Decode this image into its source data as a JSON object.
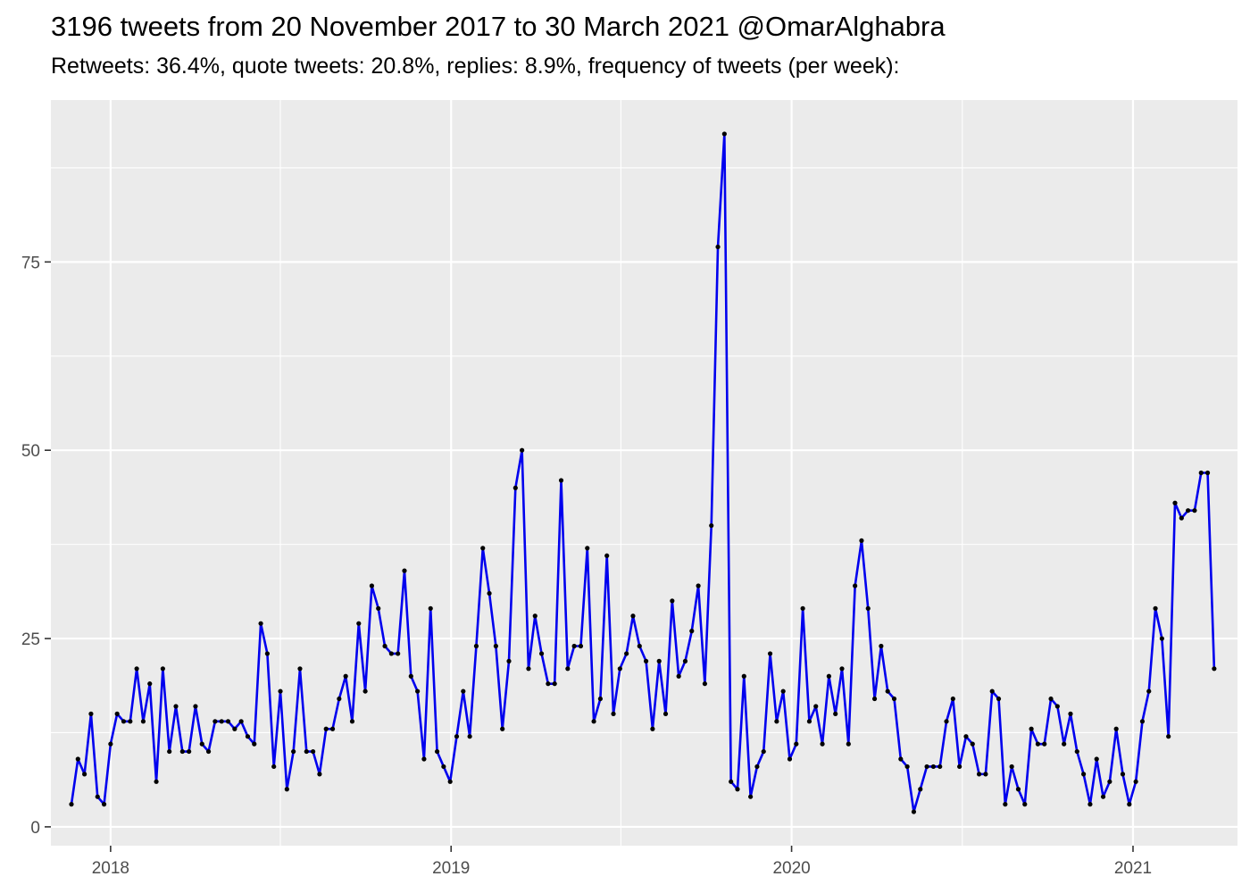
{
  "chart_data": {
    "type": "line",
    "title": "3196 tweets from 20 November 2017 to 30 March 2021 @OmarAlghabra",
    "subtitle": "Retweets: 36.4%, quote tweets: 20.8%, replies: 8.9%, frequency of tweets (per week):",
    "xlabel": "",
    "ylabel": "",
    "x_ticks": [
      "2018",
      "2019",
      "2020",
      "2021"
    ],
    "y_ticks": [
      "0",
      "25",
      "50",
      "75"
    ],
    "xlim": [
      "2017-10-29",
      "2021-04-23"
    ],
    "ylim": [
      -2.5,
      96.5
    ],
    "grid": true,
    "series_color": "#0000ee",
    "point_color": "#000000",
    "x": [
      "2017-11-20",
      "2017-11-27",
      "2017-12-04",
      "2017-12-11",
      "2017-12-18",
      "2017-12-25",
      "2018-01-01",
      "2018-01-08",
      "2018-01-15",
      "2018-01-22",
      "2018-01-29",
      "2018-02-05",
      "2018-02-12",
      "2018-02-19",
      "2018-02-26",
      "2018-03-05",
      "2018-03-12",
      "2018-03-19",
      "2018-03-26",
      "2018-04-02",
      "2018-04-09",
      "2018-04-16",
      "2018-04-23",
      "2018-04-30",
      "2018-05-07",
      "2018-05-14",
      "2018-05-21",
      "2018-05-28",
      "2018-06-04",
      "2018-06-11",
      "2018-06-18",
      "2018-06-25",
      "2018-07-02",
      "2018-07-09",
      "2018-07-16",
      "2018-07-23",
      "2018-07-30",
      "2018-08-06",
      "2018-08-13",
      "2018-08-20",
      "2018-08-27",
      "2018-09-03",
      "2018-09-10",
      "2018-09-17",
      "2018-09-24",
      "2018-10-01",
      "2018-10-08",
      "2018-10-15",
      "2018-10-22",
      "2018-10-29",
      "2018-11-05",
      "2018-11-12",
      "2018-11-19",
      "2018-11-26",
      "2018-12-03",
      "2018-12-10",
      "2018-12-17",
      "2018-12-24",
      "2018-12-31",
      "2019-01-07",
      "2019-01-14",
      "2019-01-21",
      "2019-01-28",
      "2019-02-04",
      "2019-02-11",
      "2019-02-18",
      "2019-02-25",
      "2019-03-04",
      "2019-03-11",
      "2019-03-18",
      "2019-03-25",
      "2019-04-01",
      "2019-04-08",
      "2019-04-15",
      "2019-04-22",
      "2019-04-29",
      "2019-05-06",
      "2019-05-13",
      "2019-05-20",
      "2019-05-27",
      "2019-06-03",
      "2019-06-10",
      "2019-06-17",
      "2019-06-24",
      "2019-07-01",
      "2019-07-08",
      "2019-07-15",
      "2019-07-22",
      "2019-07-29",
      "2019-08-05",
      "2019-08-12",
      "2019-08-19",
      "2019-08-26",
      "2019-09-02",
      "2019-09-09",
      "2019-09-16",
      "2019-09-23",
      "2019-09-30",
      "2019-10-07",
      "2019-10-14",
      "2019-10-21",
      "2019-10-28",
      "2019-11-04",
      "2019-11-11",
      "2019-11-18",
      "2019-11-25",
      "2019-12-02",
      "2019-12-09",
      "2019-12-16",
      "2019-12-23",
      "2019-12-30",
      "2020-01-06",
      "2020-01-13",
      "2020-01-20",
      "2020-01-27",
      "2020-02-03",
      "2020-02-10",
      "2020-02-17",
      "2020-02-24",
      "2020-03-02",
      "2020-03-09",
      "2020-03-16",
      "2020-03-23",
      "2020-03-30",
      "2020-04-06",
      "2020-04-13",
      "2020-04-20",
      "2020-04-27",
      "2020-05-04",
      "2020-05-11",
      "2020-05-18",
      "2020-05-25",
      "2020-06-01",
      "2020-06-08",
      "2020-06-15",
      "2020-06-22",
      "2020-06-29",
      "2020-07-06",
      "2020-07-13",
      "2020-07-20",
      "2020-07-27",
      "2020-08-03",
      "2020-08-10",
      "2020-08-17",
      "2020-08-24",
      "2020-08-31",
      "2020-09-07",
      "2020-09-14",
      "2020-09-21",
      "2020-09-28",
      "2020-10-05",
      "2020-10-12",
      "2020-10-19",
      "2020-10-26",
      "2020-11-02",
      "2020-11-09",
      "2020-11-16",
      "2020-11-23",
      "2020-11-30",
      "2020-12-07",
      "2020-12-14",
      "2020-12-21",
      "2020-12-28",
      "2021-01-04",
      "2021-01-11",
      "2021-01-18",
      "2021-01-25",
      "2021-02-01",
      "2021-02-08",
      "2021-02-15",
      "2021-02-22",
      "2021-03-01",
      "2021-03-08",
      "2021-03-15",
      "2021-03-22",
      "2021-03-29"
    ],
    "values": [
      3,
      9,
      7,
      15,
      4,
      3,
      11,
      15,
      14,
      14,
      21,
      14,
      19,
      6,
      21,
      10,
      16,
      10,
      10,
      16,
      11,
      10,
      14,
      14,
      14,
      13,
      14,
      12,
      11,
      27,
      23,
      8,
      18,
      5,
      10,
      21,
      10,
      10,
      7,
      13,
      13,
      17,
      20,
      14,
      27,
      18,
      32,
      29,
      24,
      23,
      23,
      34,
      20,
      18,
      9,
      29,
      10,
      8,
      6,
      12,
      18,
      12,
      24,
      37,
      31,
      24,
      13,
      22,
      45,
      50,
      21,
      28,
      23,
      19,
      19,
      46,
      21,
      24,
      24,
      37,
      14,
      17,
      36,
      15,
      21,
      23,
      28,
      24,
      22,
      13,
      22,
      15,
      30,
      20,
      22,
      26,
      32,
      19,
      40,
      77,
      92,
      6,
      5,
      20,
      4,
      8,
      10,
      23,
      14,
      18,
      9,
      11,
      29,
      14,
      16,
      11,
      20,
      15,
      21,
      11,
      32,
      38,
      29,
      17,
      24,
      18,
      17,
      9,
      8,
      2,
      5,
      8,
      8,
      8,
      14,
      17,
      8,
      12,
      11,
      7,
      7,
      18,
      17,
      3,
      8,
      5,
      3,
      13,
      11,
      11,
      17,
      16,
      11,
      15,
      10,
      7,
      3,
      9,
      4,
      6,
      13,
      7,
      3,
      6,
      14,
      18,
      29,
      25,
      12,
      43,
      41,
      42,
      42,
      47,
      47,
      21
    ]
  }
}
